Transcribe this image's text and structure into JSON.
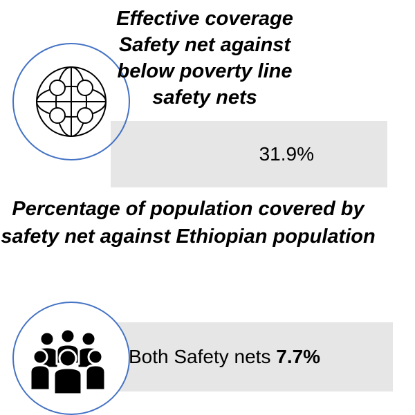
{
  "coverage": {
    "title_lines": [
      "Effective coverage",
      "Safety net against",
      "below poverty line",
      "safety nets"
    ],
    "value": "31.9%"
  },
  "population": {
    "title": "Percentage of population covered by safety net against Ethiopian population",
    "both_label": "Both Safety nets",
    "both_value": "7.7%"
  },
  "icons": {
    "network": "globe-network-icon",
    "people": "people-group-icon"
  },
  "colors": {
    "circle_outline": "#4472c4",
    "value_box": "#e6e6e6"
  }
}
